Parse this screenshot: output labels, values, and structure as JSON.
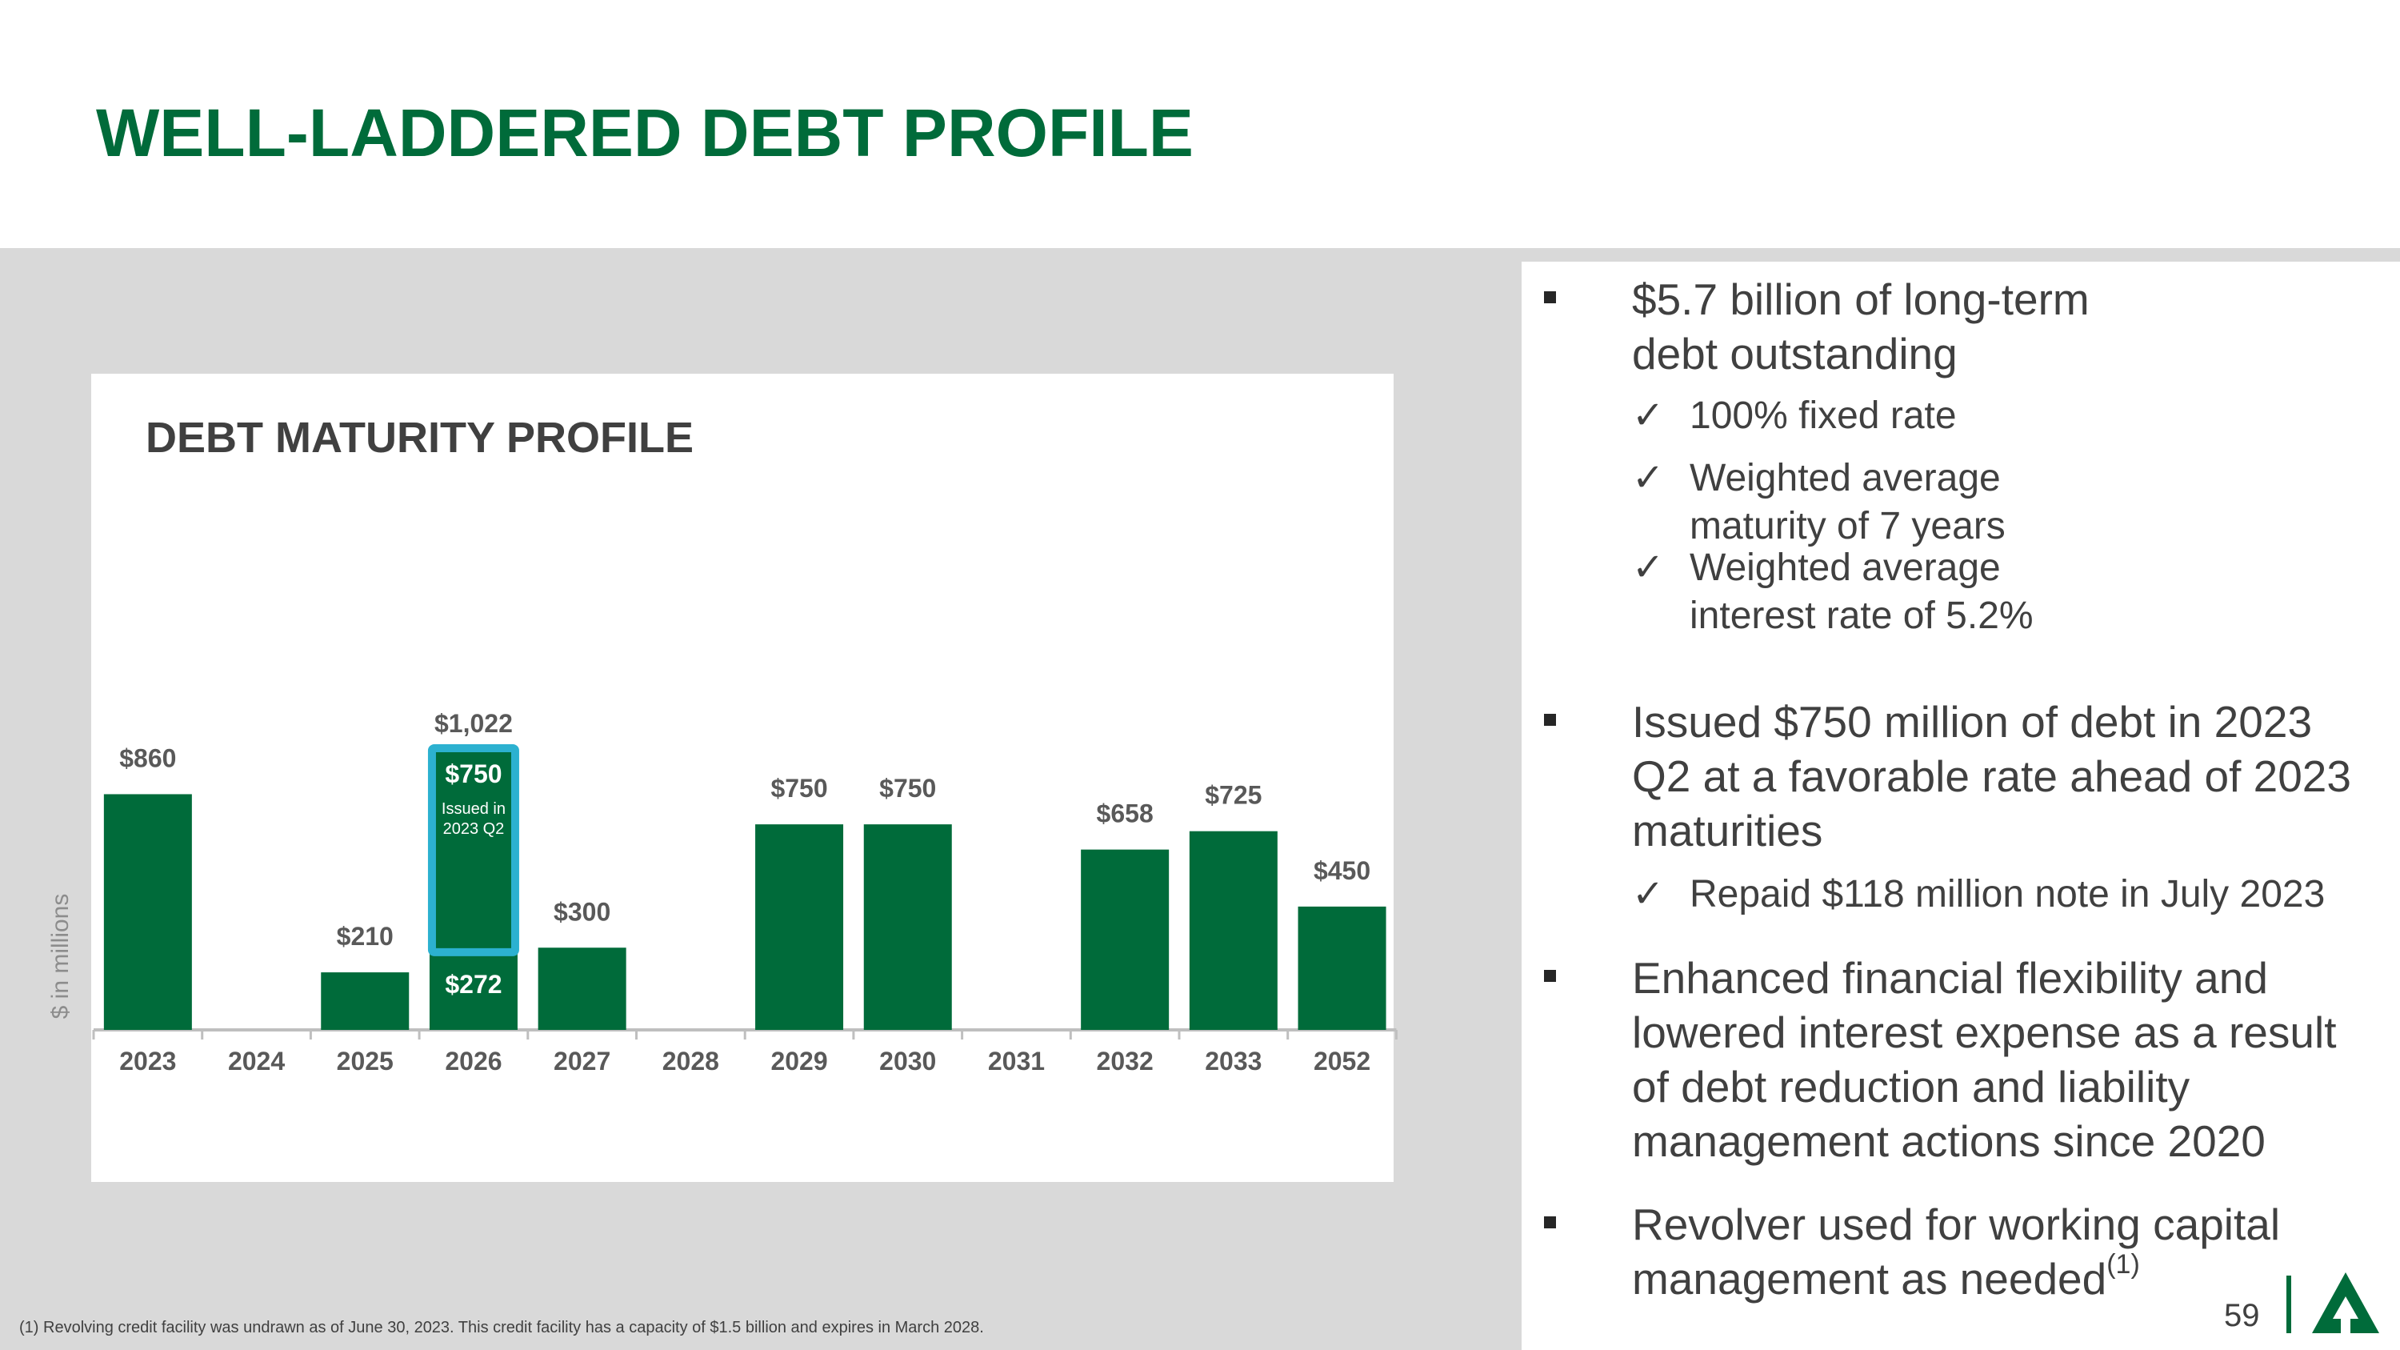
{
  "slide": {
    "title": "WELL-LADDERED DEBT PROFILE",
    "page_number": "59",
    "footnote": "(1) Revolving credit facility was undrawn as of June 30, 2023. This credit facility has a capacity of $1.5 billion and expires in March 2028.",
    "brand_color": "#006B3A",
    "highlight_color": "#2CB1D0"
  },
  "chart_data": {
    "type": "bar",
    "title": "DEBT MATURITY PROFILE",
    "ylabel": "$ in millions",
    "xlabel": "",
    "categories": [
      "2023",
      "2024",
      "2025",
      "2026",
      "2027",
      "2028",
      "2029",
      "2030",
      "2031",
      "2032",
      "2033",
      "2052"
    ],
    "values": [
      860,
      0,
      210,
      1022,
      300,
      0,
      750,
      750,
      0,
      658,
      725,
      450
    ],
    "labels": [
      "$860",
      "",
      "$210",
      "$1,022",
      "$300",
      "",
      "$750",
      "$750",
      "",
      "$658",
      "$725",
      "$450"
    ],
    "stacked_2026": {
      "lower_value": 272,
      "lower_label": "$272",
      "upper_value": 750,
      "upper_label": "$750",
      "upper_note_line1": "Issued in",
      "upper_note_line2": "2023 Q2"
    },
    "ylim": [
      0,
      1100
    ],
    "grid": false,
    "bar_color": "#006B3A"
  },
  "bullets": {
    "b1_line1": "$5.7 billion of long-term",
    "b1_line2": "debt outstanding",
    "b1_sub1": "100% fixed rate",
    "b1_sub2_line1": "Weighted average",
    "b1_sub2_line2": "maturity of 7 years",
    "b1_sub3_line1": "Weighted average",
    "b1_sub3_line2": "interest rate of 5.2%",
    "b2_line1": "Issued $750 million of debt in 2023",
    "b2_line2": "Q2 at a favorable rate ahead of 2023",
    "b2_line3": "maturities",
    "b2_sub1": "Repaid $118 million note in July 2023",
    "b3_line1": "Enhanced financial flexibility and",
    "b3_line2": "lowered interest expense as a result",
    "b3_line3": "of debt reduction and liability",
    "b3_line4": "management actions since 2020",
    "b4_line1": "Revolver used for working capital",
    "b4_line2": "management as needed",
    "b4_sup": "(1)",
    "check_glyph": "✓"
  }
}
